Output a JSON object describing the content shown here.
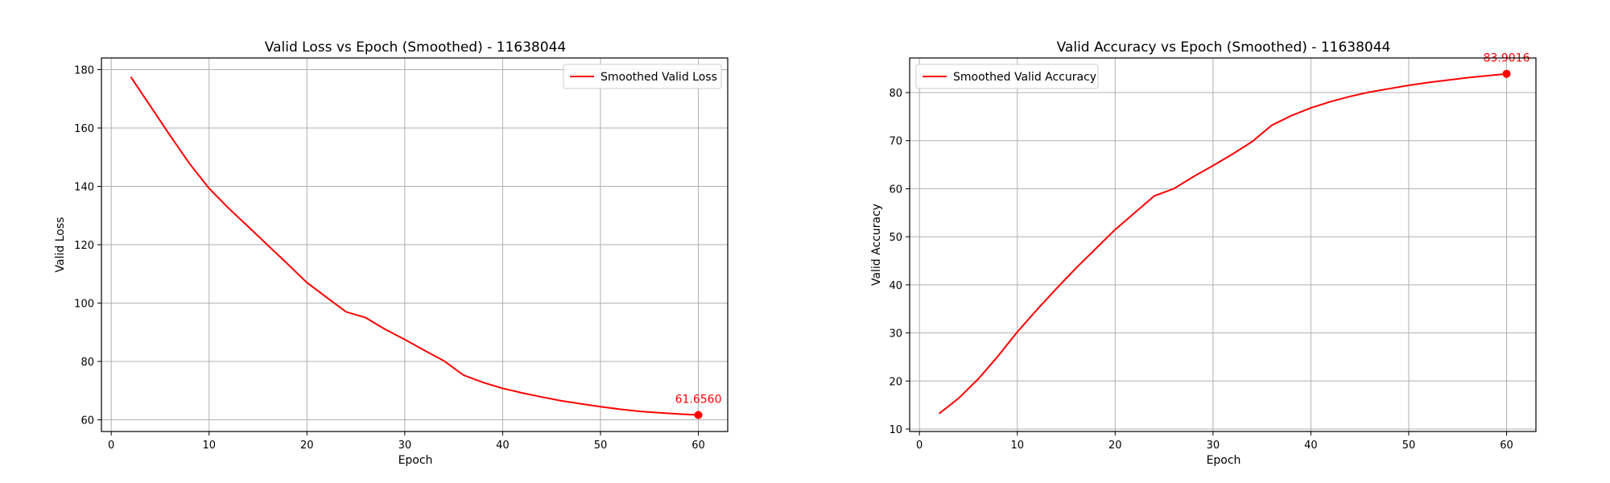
{
  "chart_data": [
    {
      "type": "line",
      "title": "Valid Loss vs Epoch (Smoothed) - 11638044",
      "xlabel": "Epoch",
      "ylabel": "Valid Loss",
      "xlim": [
        -1,
        63
      ],
      "ylim": [
        56,
        184
      ],
      "xticks": [
        0,
        10,
        20,
        30,
        40,
        50,
        60
      ],
      "yticks": [
        60,
        80,
        100,
        120,
        140,
        160,
        180
      ],
      "grid": true,
      "legend_position": "upper right",
      "color": "#ff0000",
      "series": [
        {
          "name": "Smoothed Valid Loss",
          "x": [
            2,
            4,
            6,
            8,
            10,
            12,
            14,
            16,
            18,
            20,
            22,
            24,
            26,
            28,
            30,
            32,
            34,
            36,
            38,
            40,
            42,
            44,
            46,
            48,
            50,
            52,
            54,
            56,
            58,
            60
          ],
          "y": [
            177.5,
            167.5,
            157.5,
            147.8,
            139.3,
            132.5,
            126.2,
            119.8,
            113.5,
            107.0,
            102.0,
            97.0,
            95.0,
            91.0,
            87.5,
            83.8,
            80.2,
            75.3,
            72.8,
            70.8,
            69.2,
            67.8,
            66.5,
            65.5,
            64.5,
            63.6,
            62.9,
            62.4,
            62.0,
            61.656
          ]
        }
      ],
      "annotation": {
        "x": 60,
        "y": 61.656,
        "text": "61.6560"
      }
    },
    {
      "type": "line",
      "title": "Valid Accuracy vs Epoch (Smoothed) - 11638044",
      "xlabel": "Epoch",
      "ylabel": "Valid Accuracy",
      "xlim": [
        -1,
        63
      ],
      "ylim": [
        9.5,
        87.2
      ],
      "xticks": [
        0,
        10,
        20,
        30,
        40,
        50,
        60
      ],
      "yticks": [
        10,
        20,
        30,
        40,
        50,
        60,
        70,
        80
      ],
      "grid": true,
      "legend_position": "upper left",
      "color": "#ff0000",
      "series": [
        {
          "name": "Smoothed Valid Accuracy",
          "x": [
            2,
            4,
            6,
            8,
            10,
            12,
            14,
            16,
            18,
            20,
            22,
            24,
            26,
            28,
            30,
            32,
            34,
            36,
            38,
            40,
            42,
            44,
            46,
            48,
            50,
            52,
            54,
            56,
            58,
            60
          ],
          "y": [
            13.2,
            16.4,
            20.4,
            25.1,
            30.2,
            34.8,
            39.2,
            43.5,
            47.5,
            51.5,
            55.0,
            58.5,
            60.0,
            62.5,
            64.8,
            67.2,
            69.8,
            73.2,
            75.2,
            76.8,
            78.1,
            79.2,
            80.1,
            80.8,
            81.5,
            82.1,
            82.6,
            83.1,
            83.5,
            83.9016
          ]
        }
      ],
      "annotation": {
        "x": 60,
        "y": 83.9016,
        "text": "83.9016"
      }
    }
  ]
}
